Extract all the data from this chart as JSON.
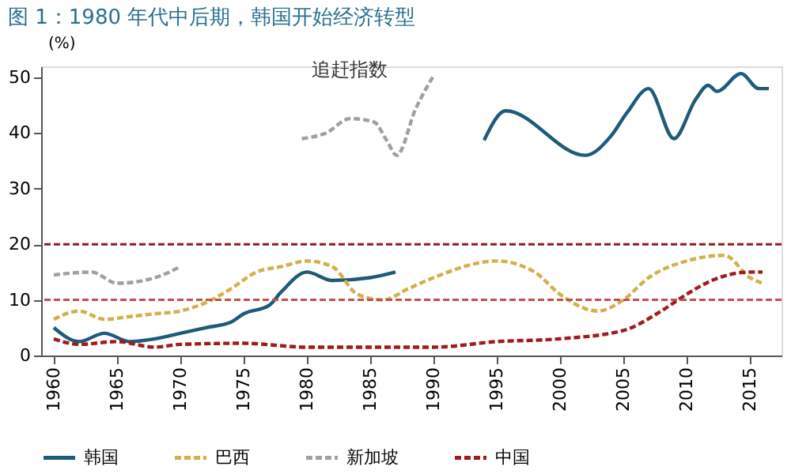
{
  "chart_data": {
    "type": "line",
    "title": "图 1：1980 年代中后期，韩国开始经济转型",
    "ylabel": "(%)",
    "annotations": [
      "追赶指数"
    ],
    "xlim": [
      1959,
      2017.5
    ],
    "xticks": [
      1960,
      1965,
      1970,
      1975,
      1980,
      1985,
      1990,
      1995,
      2000,
      2005,
      2010,
      2015
    ],
    "ylim": [
      0,
      52
    ],
    "yticks": [
      0,
      10,
      20,
      30,
      40,
      50
    ],
    "grid": false,
    "legend": "bottom",
    "ref_lines": [
      {
        "axis": "y",
        "value": 10,
        "color": "#c0504d",
        "line_style": "dashed"
      },
      {
        "axis": "y",
        "value": 20,
        "color": "#8b1a1a",
        "line_style": "dashed"
      }
    ],
    "series": [
      {
        "name": "韩国",
        "color": "#1f5a7a",
        "line_style": "solid",
        "x": [
          1960,
          1962,
          1964,
          1966,
          1968,
          1970,
          1972,
          1974,
          1975,
          1977,
          1978,
          1980,
          1982,
          1985,
          1987,
          1990,
          1994,
          1995.7,
          2002,
          2004,
          2005.3,
          2007,
          2009,
          2010.7,
          2011.7,
          2012.4,
          2014.3,
          2015.7,
          2016.5
        ],
        "values": [
          5,
          2.5,
          4,
          2.5,
          3,
          4,
          5,
          6,
          7.5,
          9,
          11.5,
          15,
          13.5,
          14,
          15,
          null,
          38.7,
          44,
          36,
          39.4,
          43.7,
          48,
          39,
          46,
          48.6,
          47.5,
          50.7,
          48,
          48
        ]
      },
      {
        "name": "巴西",
        "color": "#d4b04a",
        "line_style": "dashed",
        "x": [
          1960,
          1962,
          1964,
          1966,
          1968,
          1970,
          1972,
          1974,
          1976,
          1978,
          1980,
          1982,
          1984,
          1986,
          1988,
          1990,
          1995,
          1998,
          2000,
          2003,
          2005,
          2007,
          2010,
          2013,
          2015,
          2016
        ],
        "values": [
          6.5,
          8,
          6.5,
          7,
          7.5,
          8,
          9.5,
          12,
          15,
          16,
          17,
          16,
          11,
          10,
          12,
          14,
          17,
          15,
          11,
          8,
          10,
          14,
          17,
          18,
          14,
          13
        ]
      },
      {
        "name": "新加坡",
        "color": "#a0a0a0",
        "line_style": "dashed",
        "x": [
          1960,
          1963,
          1965,
          1968,
          1970,
          1975,
          1979.6,
          1981.5,
          1983.4,
          1985.3,
          1986.3,
          1987.1,
          1988.6,
          1990
        ],
        "values": [
          14.5,
          15,
          13,
          14,
          16,
          null,
          39,
          40,
          42.6,
          42,
          38.7,
          36,
          44.4,
          50.3
        ]
      },
      {
        "name": "中国",
        "color": "#a01c1c",
        "line_style": "dashed",
        "x": [
          1960,
          1962,
          1965,
          1968,
          1970,
          1975,
          1980,
          1985,
          1990,
          1995,
          2000,
          2005,
          2008,
          2010,
          2012,
          2015,
          2016
        ],
        "values": [
          3,
          2,
          2.5,
          1.5,
          2,
          2.2,
          1.5,
          1.5,
          1.5,
          2.5,
          3,
          4.5,
          8,
          11,
          13.5,
          15,
          15
        ]
      }
    ]
  }
}
